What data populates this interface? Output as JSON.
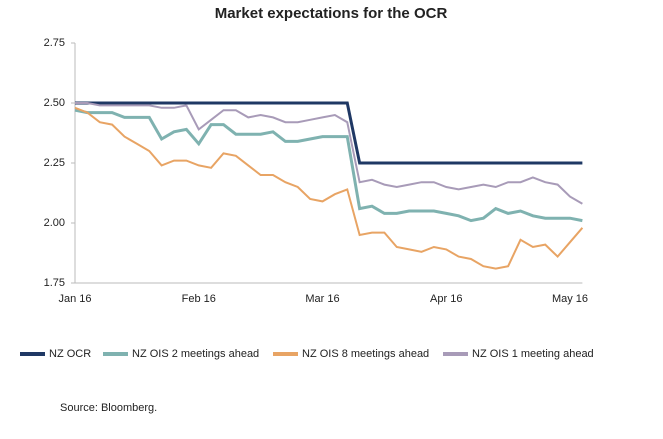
{
  "chart_data": {
    "type": "line",
    "title": "Market expectations for the OCR",
    "categories": [
      "Jan 16",
      null,
      null,
      null,
      null,
      null,
      null,
      null,
      null,
      null,
      "Feb 16",
      null,
      null,
      null,
      null,
      null,
      null,
      null,
      null,
      null,
      "Mar 16",
      null,
      null,
      null,
      null,
      null,
      null,
      null,
      null,
      null,
      "Apr 16",
      null,
      null,
      null,
      null,
      null,
      null,
      null,
      null,
      null,
      "May 16",
      null
    ],
    "series": [
      {
        "name": "NZ OCR",
        "color": "#1f3864",
        "width": 3,
        "values": [
          2.5,
          2.5,
          2.5,
          2.5,
          2.5,
          2.5,
          2.5,
          2.5,
          2.5,
          2.5,
          2.5,
          2.5,
          2.5,
          2.5,
          2.5,
          2.5,
          2.5,
          2.5,
          2.5,
          2.5,
          2.5,
          2.5,
          2.5,
          2.25,
          2.25,
          2.25,
          2.25,
          2.25,
          2.25,
          2.25,
          2.25,
          2.25,
          2.25,
          2.25,
          2.25,
          2.25,
          2.25,
          2.25,
          2.25,
          2.25,
          2.25,
          2.25
        ]
      },
      {
        "name": "NZ OIS 2 meetings ahead",
        "color": "#7fb2b0",
        "width": 3,
        "values": [
          2.47,
          2.46,
          2.46,
          2.46,
          2.44,
          2.44,
          2.44,
          2.35,
          2.38,
          2.39,
          2.33,
          2.41,
          2.41,
          2.37,
          2.37,
          2.37,
          2.38,
          2.34,
          2.34,
          2.35,
          2.36,
          2.36,
          2.36,
          2.06,
          2.07,
          2.04,
          2.04,
          2.05,
          2.05,
          2.05,
          2.04,
          2.03,
          2.01,
          2.02,
          2.06,
          2.04,
          2.05,
          2.03,
          2.02,
          2.02,
          2.02,
          2.01
        ]
      },
      {
        "name": "NZ OIS 8 meetings ahead",
        "color": "#e8a464",
        "width": 2,
        "values": [
          2.48,
          2.46,
          2.42,
          2.41,
          2.36,
          2.33,
          2.3,
          2.24,
          2.26,
          2.26,
          2.24,
          2.23,
          2.29,
          2.28,
          2.24,
          2.2,
          2.2,
          2.17,
          2.15,
          2.1,
          2.09,
          2.12,
          2.14,
          1.95,
          1.96,
          1.96,
          1.9,
          1.89,
          1.88,
          1.9,
          1.89,
          1.86,
          1.85,
          1.82,
          1.81,
          1.82,
          1.93,
          1.9,
          1.91,
          1.86,
          1.92,
          1.98
        ]
      },
      {
        "name": "NZ OIS 1 meeting ahead",
        "color": "#a89bb8",
        "width": 2,
        "values": [
          2.5,
          2.5,
          2.49,
          2.49,
          2.49,
          2.49,
          2.49,
          2.48,
          2.48,
          2.49,
          2.39,
          2.43,
          2.47,
          2.47,
          2.44,
          2.45,
          2.44,
          2.42,
          2.42,
          2.43,
          2.44,
          2.45,
          2.42,
          2.17,
          2.18,
          2.16,
          2.15,
          2.16,
          2.17,
          2.17,
          2.15,
          2.14,
          2.15,
          2.16,
          2.15,
          2.17,
          2.17,
          2.19,
          2.17,
          2.16,
          2.11,
          2.08
        ]
      }
    ],
    "ylim": [
      1.75,
      2.75
    ],
    "yticks": [
      {
        "value": 1.75,
        "label": "1.75"
      },
      {
        "value": 2,
        "label": "2.00"
      },
      {
        "value": 2.25,
        "label": "2.25"
      },
      {
        "value": 2.5,
        "label": "2.50"
      },
      {
        "value": 2.75,
        "label": "2.75"
      }
    ],
    "legend": "bottom",
    "source": "Source: Bloomberg."
  }
}
